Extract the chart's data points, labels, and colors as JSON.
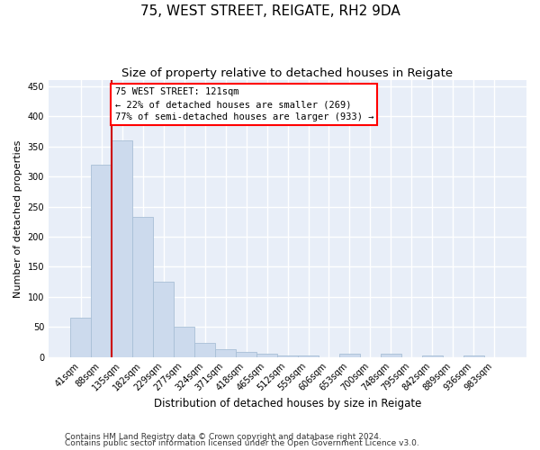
{
  "title": "75, WEST STREET, REIGATE, RH2 9DA",
  "subtitle": "Size of property relative to detached houses in Reigate",
  "xlabel": "Distribution of detached houses by size in Reigate",
  "ylabel": "Number of detached properties",
  "categories": [
    "41sqm",
    "88sqm",
    "135sqm",
    "182sqm",
    "229sqm",
    "277sqm",
    "324sqm",
    "371sqm",
    "418sqm",
    "465sqm",
    "512sqm",
    "559sqm",
    "606sqm",
    "653sqm",
    "700sqm",
    "748sqm",
    "795sqm",
    "842sqm",
    "889sqm",
    "936sqm",
    "983sqm"
  ],
  "values": [
    65,
    320,
    360,
    233,
    125,
    50,
    23,
    13,
    8,
    5,
    3,
    2,
    0,
    5,
    0,
    5,
    0,
    3,
    0,
    3,
    0
  ],
  "bar_color": "#ccdaed",
  "bar_edge_color": "#a8bfd6",
  "red_line_index": 1.5,
  "annotation_text": "75 WEST STREET: 121sqm\n← 22% of detached houses are smaller (269)\n77% of semi-detached houses are larger (933) →",
  "annotation_box_color": "white",
  "annotation_box_edge": "red",
  "property_line_color": "#cc0000",
  "ylim": [
    0,
    460
  ],
  "yticks": [
    0,
    50,
    100,
    150,
    200,
    250,
    300,
    350,
    400,
    450
  ],
  "footnote1": "Contains HM Land Registry data © Crown copyright and database right 2024.",
  "footnote2": "Contains public sector information licensed under the Open Government Licence v3.0.",
  "background_color": "#e8eef8",
  "grid_color": "#ffffff",
  "title_fontsize": 11,
  "subtitle_fontsize": 9.5,
  "xlabel_fontsize": 8.5,
  "ylabel_fontsize": 8,
  "tick_fontsize": 7,
  "footnote_fontsize": 6.5,
  "annotation_fontsize": 7.5
}
